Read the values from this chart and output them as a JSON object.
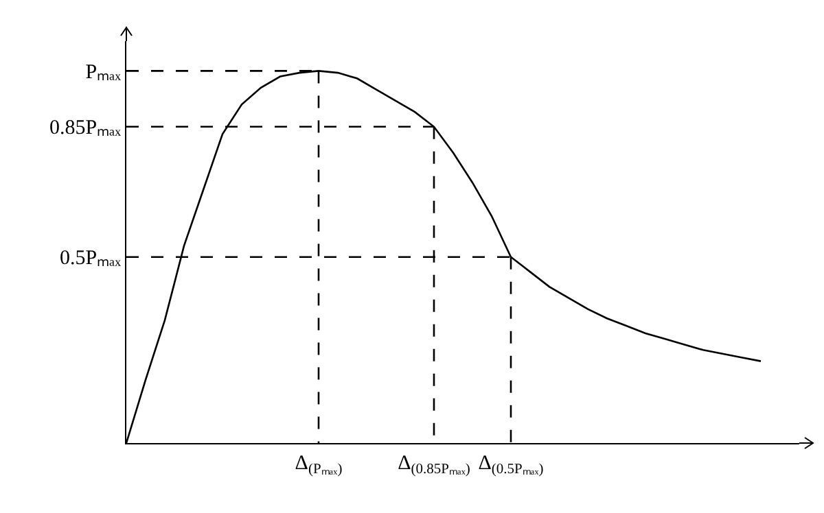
{
  "chart_data": {
    "type": "line",
    "ylim": [
      0,
      1.08
    ],
    "categories": [
      null,
      null,
      null,
      null,
      null,
      null,
      null,
      null,
      null,
      null,
      "Δ$_{(Pₘₐₓ)}$",
      null,
      null,
      null,
      null,
      null,
      "Δ$_{(0.85Pₘₐₓ)}$",
      null,
      null,
      null,
      "Δ$_{(0.5Pₘₐₓ)}$",
      null,
      null,
      null,
      null,
      null,
      null,
      null,
      null,
      null,
      null,
      null,
      null,
      null
    ],
    "yticks": [
      {
        "value": 0.5,
        "label": "0.5Pₘₐₓ"
      },
      {
        "value": 0.85,
        "label": "0.85Pₘₐₓ"
      },
      {
        "value": 1,
        "label": "Pₘₐₓ"
      }
    ],
    "grid": false,
    "marker": "none",
    "series": [
      {
        "color": "#000000",
        "line_style": "solid",
        "values": [
          0,
          0.17,
          0.33,
          0.53,
          0.68,
          0.83,
          0.91,
          0.955,
          0.985,
          0.995,
          1,
          0.995,
          0.98,
          0.95,
          0.92,
          0.89,
          0.85,
          0.78,
          0.7,
          0.61,
          0.5,
          0.46,
          0.42,
          0.39,
          0.36,
          0.335,
          0.315,
          0.295,
          0.28,
          0.265,
          0.25,
          0.24,
          0.23,
          0.22
        ]
      },
      {
        "color": "#000000",
        "line_style": "dashed",
        "values": [
          1,
          1,
          1,
          1,
          1,
          1,
          1,
          1,
          1,
          1,
          1,
          null,
          null,
          null,
          null,
          null,
          null,
          null,
          null,
          null,
          null,
          null,
          null,
          null,
          null,
          null,
          null,
          null,
          null,
          null,
          null,
          null,
          null,
          null
        ]
      },
      {
        "color": "#000000",
        "line_style": "dashed",
        "values": [
          0.85,
          0.85,
          0.85,
          0.85,
          0.85,
          0.85,
          0.85,
          0.85,
          0.85,
          0.85,
          0.85,
          0.85,
          0.85,
          0.85,
          0.85,
          0.85,
          0.85,
          null,
          null,
          null,
          null,
          null,
          null,
          null,
          null,
          null,
          null,
          null,
          null,
          null,
          null,
          null,
          null,
          null
        ]
      },
      {
        "color": "#000000",
        "line_style": "dashed",
        "values": [
          0.5,
          0.5,
          0.5,
          0.5,
          0.5,
          0.5,
          0.5,
          0.5,
          0.5,
          0.5,
          0.5,
          0.5,
          0.5,
          0.5,
          0.5,
          0.5,
          0.5,
          0.5,
          0.5,
          0.5,
          0.5,
          null,
          null,
          null,
          null,
          null,
          null,
          null,
          null,
          null,
          null,
          null,
          null,
          null
        ]
      },
      {
        "color": "#000000",
        "line_style": "dashed",
        "x": [
          "Δ$_{(Pₘₐₓ)}$",
          "Δ$_{(Pₘₐₓ)}$"
        ],
        "values": [
          1,
          0
        ]
      },
      {
        "color": "#000000",
        "line_style": "dashed",
        "x": [
          "Δ$_{(0.85Pₘₐₓ)}$",
          "Δ$_{(0.85Pₘₐₓ)}$"
        ],
        "values": [
          0.85,
          0
        ]
      },
      {
        "color": "#000000",
        "line_style": "dashed",
        "x": [
          "Δ$_{(0.5Pₘₐₓ)}$",
          "Δ$_{(0.5Pₘₐₓ)}$"
        ],
        "values": [
          0.5,
          0
        ]
      }
    ]
  }
}
